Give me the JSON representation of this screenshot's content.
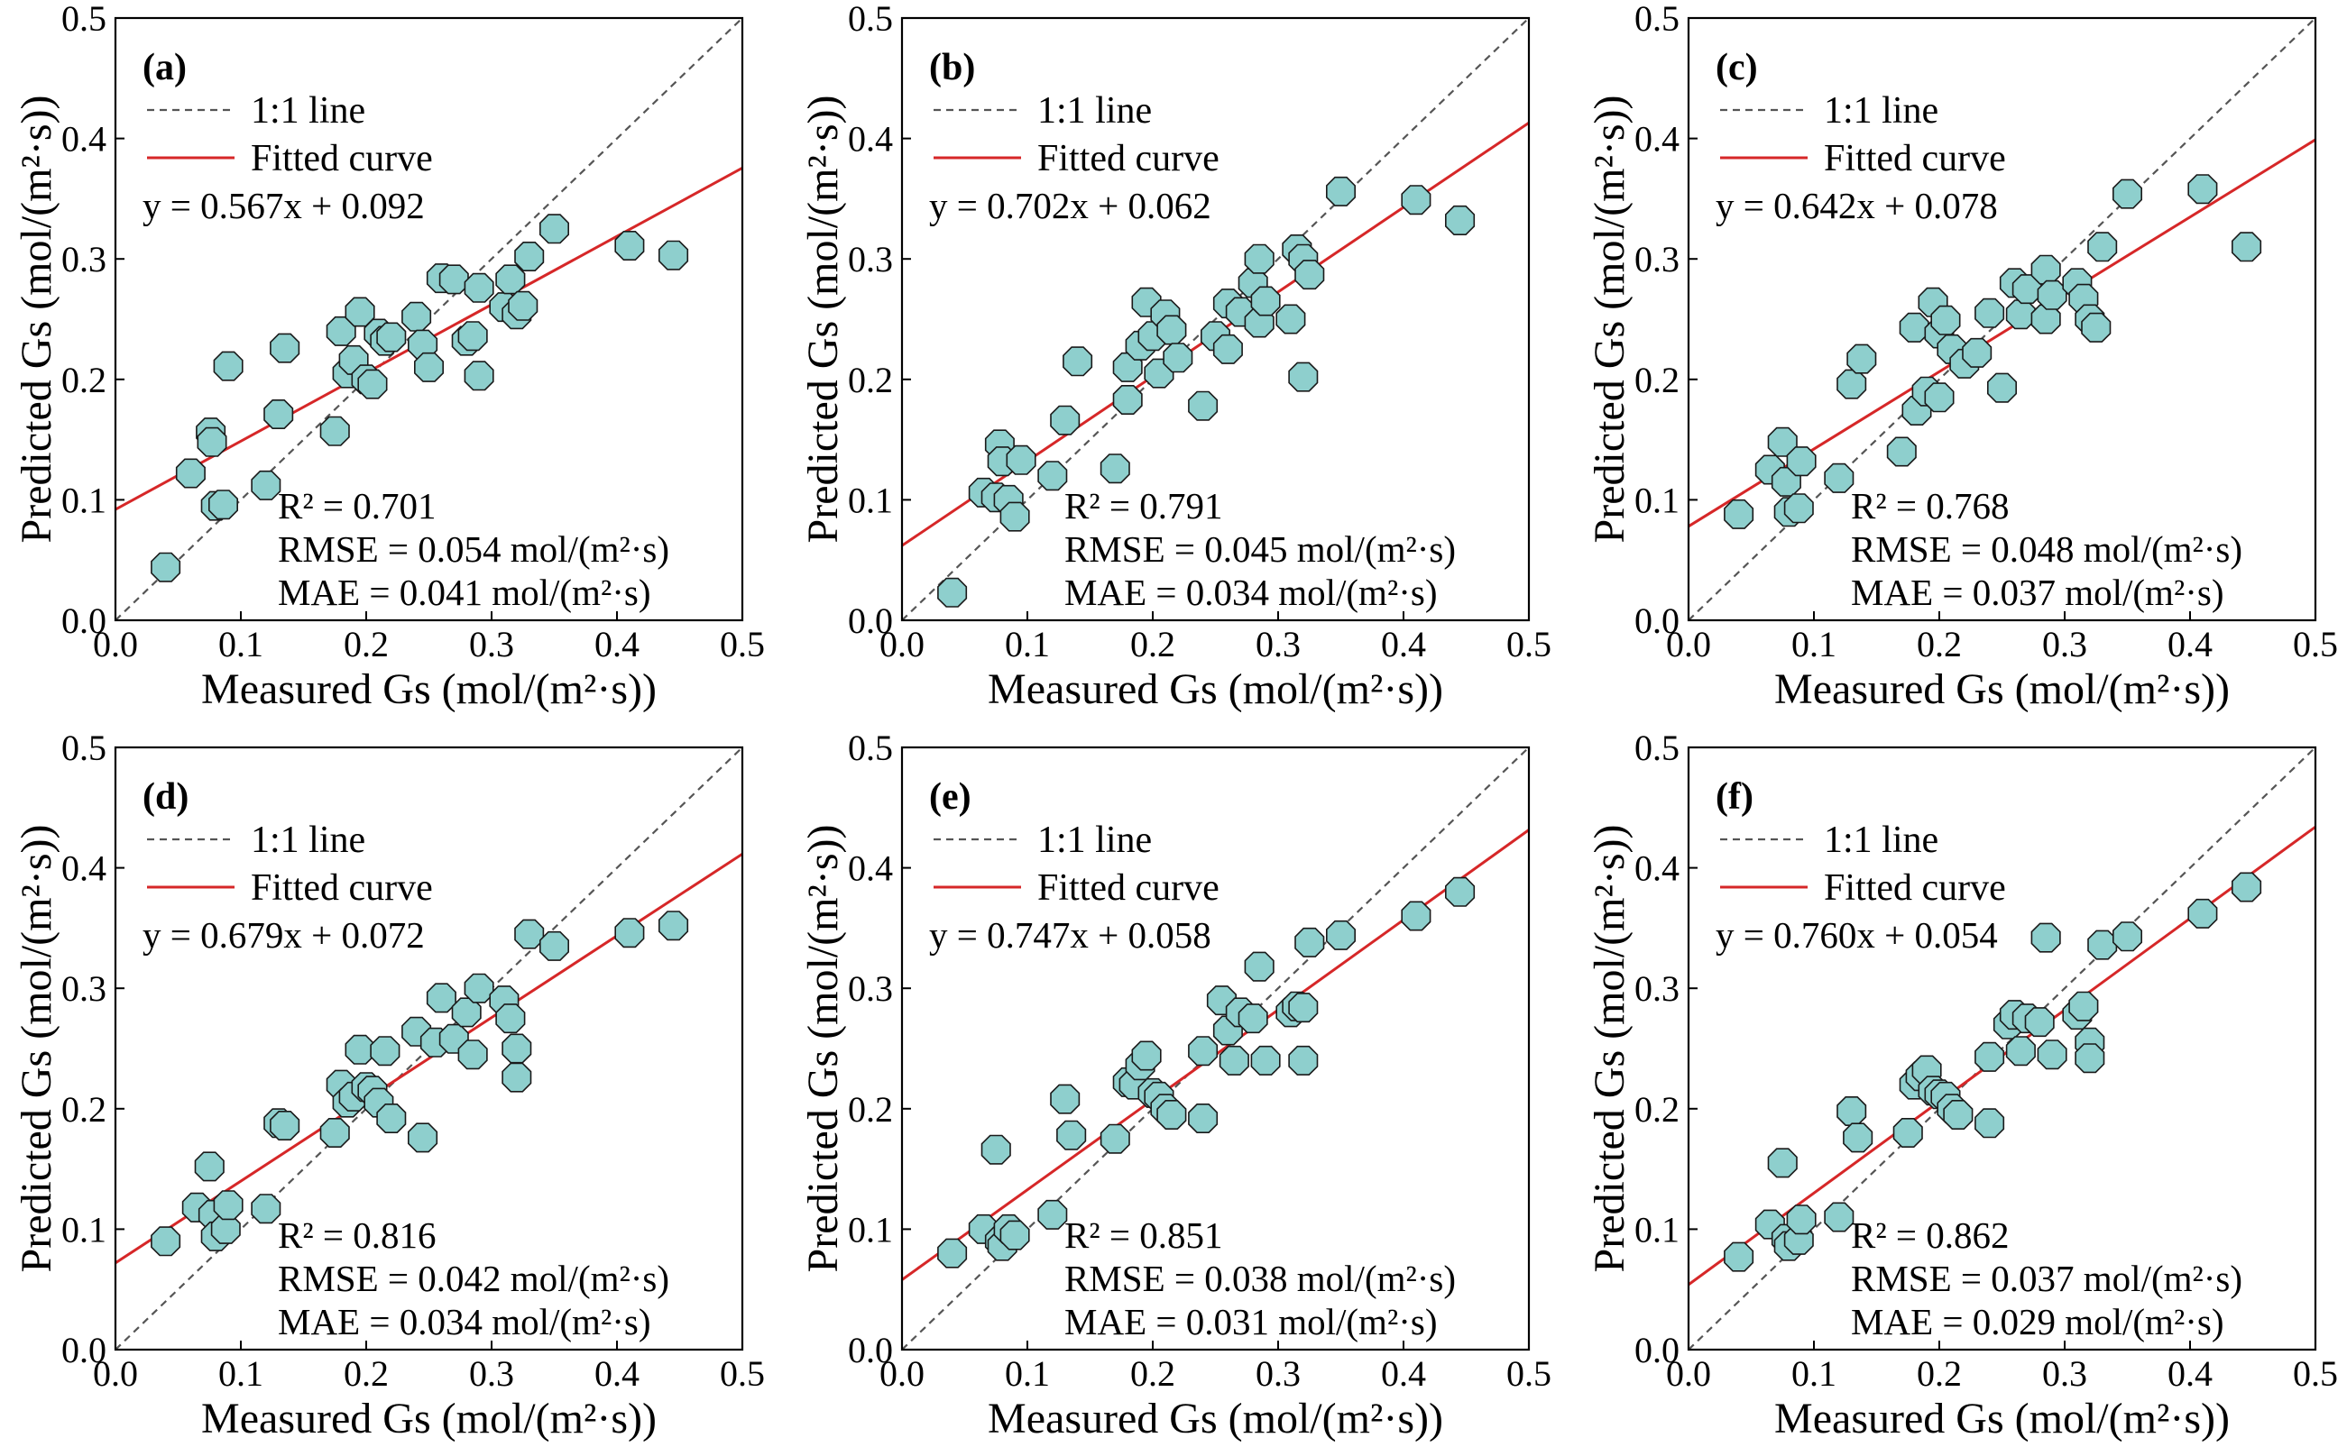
{
  "colors": {
    "one_to_one": "#555555",
    "fitted": "#d62728",
    "marker_fill": "#8ecfcd",
    "marker_edge": "#1a1a1a",
    "frame": "#000000"
  },
  "legend": {
    "one_to_one_label": "1:1 line",
    "fitted_label": "Fitted curve",
    "placement": "upper-left"
  },
  "chart_data": [
    {
      "type": "scatter",
      "panel_label": "(a)",
      "xlabel": "Measured Gs (mol/(m²·s))",
      "ylabel": "Predicted Gs (mol/(m²·s))",
      "xlim": [
        0,
        0.5
      ],
      "ylim": [
        0,
        0.5
      ],
      "xticks": [
        "0.0",
        "0.1",
        "0.2",
        "0.3",
        "0.4",
        "0.5"
      ],
      "yticks": [
        "0.0",
        "0.1",
        "0.2",
        "0.3",
        "0.4",
        "0.5"
      ],
      "fit": {
        "slope": 0.567,
        "intercept": 0.092
      },
      "equation": "y = 0.567x + 0.092",
      "r2": "R² = 0.701",
      "rmse": "RMSE = 0.054 mol/(m²·s)",
      "mae": "MAE = 0.041 mol/(m²·s)",
      "points": [
        [
          0.04,
          0.044
        ],
        [
          0.06,
          0.122
        ],
        [
          0.076,
          0.156
        ],
        [
          0.077,
          0.148
        ],
        [
          0.08,
          0.095
        ],
        [
          0.086,
          0.096
        ],
        [
          0.09,
          0.211
        ],
        [
          0.12,
          0.112
        ],
        [
          0.13,
          0.171
        ],
        [
          0.135,
          0.226
        ],
        [
          0.175,
          0.157
        ],
        [
          0.18,
          0.24
        ],
        [
          0.185,
          0.205
        ],
        [
          0.19,
          0.216
        ],
        [
          0.195,
          0.256
        ],
        [
          0.2,
          0.2
        ],
        [
          0.205,
          0.196
        ],
        [
          0.21,
          0.238
        ],
        [
          0.215,
          0.232
        ],
        [
          0.22,
          0.235
        ],
        [
          0.24,
          0.252
        ],
        [
          0.245,
          0.229
        ],
        [
          0.25,
          0.21
        ],
        [
          0.26,
          0.284
        ],
        [
          0.27,
          0.283
        ],
        [
          0.28,
          0.232
        ],
        [
          0.285,
          0.236
        ],
        [
          0.29,
          0.276
        ],
        [
          0.29,
          0.203
        ],
        [
          0.31,
          0.26
        ],
        [
          0.315,
          0.283
        ],
        [
          0.32,
          0.254
        ],
        [
          0.325,
          0.261
        ],
        [
          0.33,
          0.302
        ],
        [
          0.35,
          0.325
        ],
        [
          0.41,
          0.311
        ],
        [
          0.445,
          0.303
        ]
      ]
    },
    {
      "type": "scatter",
      "panel_label": "(b)",
      "xlabel": "Measured Gs (mol/(m²·s))",
      "ylabel": "Predicted Gs (mol/(m²·s))",
      "xlim": [
        0,
        0.5
      ],
      "ylim": [
        0,
        0.5
      ],
      "xticks": [
        "0.0",
        "0.1",
        "0.2",
        "0.3",
        "0.4",
        "0.5"
      ],
      "yticks": [
        "0.0",
        "0.1",
        "0.2",
        "0.3",
        "0.4",
        "0.5"
      ],
      "fit": {
        "slope": 0.702,
        "intercept": 0.062
      },
      "equation": "y = 0.702x + 0.062",
      "r2": "R² = 0.791",
      "rmse": "RMSE = 0.045 mol/(m²·s)",
      "mae": "MAE = 0.034 mol/(m²·s)",
      "points": [
        [
          0.04,
          0.023
        ],
        [
          0.065,
          0.106
        ],
        [
          0.075,
          0.102
        ],
        [
          0.078,
          0.146
        ],
        [
          0.08,
          0.132
        ],
        [
          0.085,
          0.1
        ],
        [
          0.09,
          0.086
        ],
        [
          0.095,
          0.133
        ],
        [
          0.12,
          0.12
        ],
        [
          0.13,
          0.166
        ],
        [
          0.14,
          0.215
        ],
        [
          0.17,
          0.126
        ],
        [
          0.18,
          0.21
        ],
        [
          0.18,
          0.183
        ],
        [
          0.19,
          0.228
        ],
        [
          0.195,
          0.264
        ],
        [
          0.2,
          0.236
        ],
        [
          0.205,
          0.205
        ],
        [
          0.21,
          0.254
        ],
        [
          0.215,
          0.241
        ],
        [
          0.22,
          0.218
        ],
        [
          0.24,
          0.178
        ],
        [
          0.25,
          0.236
        ],
        [
          0.26,
          0.225
        ],
        [
          0.26,
          0.263
        ],
        [
          0.27,
          0.256
        ],
        [
          0.28,
          0.28
        ],
        [
          0.285,
          0.247
        ],
        [
          0.285,
          0.3
        ],
        [
          0.29,
          0.265
        ],
        [
          0.31,
          0.25
        ],
        [
          0.315,
          0.308
        ],
        [
          0.32,
          0.202
        ],
        [
          0.32,
          0.3
        ],
        [
          0.325,
          0.287
        ],
        [
          0.35,
          0.356
        ],
        [
          0.41,
          0.349
        ],
        [
          0.445,
          0.332
        ]
      ]
    },
    {
      "type": "scatter",
      "panel_label": "(c)",
      "xlabel": "Measured Gs (mol/(m²·s))",
      "ylabel": "Predicted Gs (mol/(m²·s))",
      "xlim": [
        0,
        0.5
      ],
      "ylim": [
        0,
        0.5
      ],
      "xticks": [
        "0.0",
        "0.1",
        "0.2",
        "0.3",
        "0.4",
        "0.5"
      ],
      "yticks": [
        "0.0",
        "0.1",
        "0.2",
        "0.3",
        "0.4",
        "0.5"
      ],
      "fit": {
        "slope": 0.642,
        "intercept": 0.078
      },
      "equation": "y = 0.642x + 0.078",
      "r2": "R² = 0.768",
      "rmse": "RMSE = 0.048 mol/(m²·s)",
      "mae": "MAE = 0.037 mol/(m²·s)",
      "points": [
        [
          0.04,
          0.088
        ],
        [
          0.065,
          0.125
        ],
        [
          0.075,
          0.148
        ],
        [
          0.078,
          0.115
        ],
        [
          0.08,
          0.09
        ],
        [
          0.088,
          0.093
        ],
        [
          0.09,
          0.132
        ],
        [
          0.12,
          0.118
        ],
        [
          0.13,
          0.196
        ],
        [
          0.138,
          0.217
        ],
        [
          0.17,
          0.14
        ],
        [
          0.18,
          0.243
        ],
        [
          0.182,
          0.174
        ],
        [
          0.19,
          0.19
        ],
        [
          0.195,
          0.264
        ],
        [
          0.2,
          0.185
        ],
        [
          0.2,
          0.238
        ],
        [
          0.205,
          0.249
        ],
        [
          0.21,
          0.225
        ],
        [
          0.22,
          0.213
        ],
        [
          0.23,
          0.222
        ],
        [
          0.24,
          0.255
        ],
        [
          0.25,
          0.193
        ],
        [
          0.26,
          0.28
        ],
        [
          0.265,
          0.254
        ],
        [
          0.27,
          0.275
        ],
        [
          0.285,
          0.291
        ],
        [
          0.285,
          0.25
        ],
        [
          0.29,
          0.27
        ],
        [
          0.31,
          0.28
        ],
        [
          0.315,
          0.267
        ],
        [
          0.32,
          0.25
        ],
        [
          0.325,
          0.243
        ],
        [
          0.33,
          0.31
        ],
        [
          0.35,
          0.354
        ],
        [
          0.41,
          0.358
        ],
        [
          0.445,
          0.31
        ]
      ]
    },
    {
      "type": "scatter",
      "panel_label": "(d)",
      "xlabel": "Measured Gs (mol/(m²·s))",
      "ylabel": "Predicted Gs (mol/(m²·s))",
      "xlim": [
        0,
        0.5
      ],
      "ylim": [
        0,
        0.5
      ],
      "xticks": [
        "0.0",
        "0.1",
        "0.2",
        "0.3",
        "0.4",
        "0.5"
      ],
      "yticks": [
        "0.0",
        "0.1",
        "0.2",
        "0.3",
        "0.4",
        "0.5"
      ],
      "fit": {
        "slope": 0.679,
        "intercept": 0.072
      },
      "equation": "y = 0.679x + 0.072",
      "r2": "R² = 0.816",
      "rmse": "RMSE = 0.042 mol/(m²·s)",
      "mae": "MAE = 0.034 mol/(m²·s)",
      "points": [
        [
          0.04,
          0.09
        ],
        [
          0.065,
          0.118
        ],
        [
          0.075,
          0.152
        ],
        [
          0.078,
          0.112
        ],
        [
          0.08,
          0.094
        ],
        [
          0.088,
          0.1
        ],
        [
          0.09,
          0.12
        ],
        [
          0.12,
          0.117
        ],
        [
          0.13,
          0.188
        ],
        [
          0.135,
          0.186
        ],
        [
          0.175,
          0.18
        ],
        [
          0.18,
          0.22
        ],
        [
          0.185,
          0.205
        ],
        [
          0.19,
          0.21
        ],
        [
          0.195,
          0.249
        ],
        [
          0.2,
          0.218
        ],
        [
          0.205,
          0.215
        ],
        [
          0.21,
          0.205
        ],
        [
          0.215,
          0.248
        ],
        [
          0.22,
          0.192
        ],
        [
          0.24,
          0.264
        ],
        [
          0.245,
          0.176
        ],
        [
          0.255,
          0.255
        ],
        [
          0.26,
          0.292
        ],
        [
          0.27,
          0.258
        ],
        [
          0.28,
          0.28
        ],
        [
          0.285,
          0.245
        ],
        [
          0.29,
          0.3
        ],
        [
          0.31,
          0.29
        ],
        [
          0.315,
          0.275
        ],
        [
          0.32,
          0.25
        ],
        [
          0.32,
          0.226
        ],
        [
          0.33,
          0.345
        ],
        [
          0.35,
          0.335
        ],
        [
          0.41,
          0.346
        ],
        [
          0.445,
          0.352
        ]
      ]
    },
    {
      "type": "scatter",
      "panel_label": "(e)",
      "xlabel": "Measured Gs (mol/(m²·s))",
      "ylabel": "Predicted Gs (mol/(m²·s))",
      "xlim": [
        0,
        0.5
      ],
      "ylim": [
        0,
        0.5
      ],
      "xticks": [
        "0.0",
        "0.1",
        "0.2",
        "0.3",
        "0.4",
        "0.5"
      ],
      "yticks": [
        "0.0",
        "0.1",
        "0.2",
        "0.3",
        "0.4",
        "0.5"
      ],
      "fit": {
        "slope": 0.747,
        "intercept": 0.058
      },
      "equation": "y = 0.747x + 0.058",
      "r2": "R² = 0.851",
      "rmse": "RMSE = 0.038 mol/(m²·s)",
      "mae": "MAE = 0.031 mol/(m²·s)",
      "points": [
        [
          0.04,
          0.08
        ],
        [
          0.065,
          0.1
        ],
        [
          0.075,
          0.166
        ],
        [
          0.078,
          0.09
        ],
        [
          0.08,
          0.086
        ],
        [
          0.085,
          0.1
        ],
        [
          0.09,
          0.095
        ],
        [
          0.12,
          0.112
        ],
        [
          0.13,
          0.208
        ],
        [
          0.135,
          0.178
        ],
        [
          0.17,
          0.175
        ],
        [
          0.18,
          0.222
        ],
        [
          0.185,
          0.22
        ],
        [
          0.19,
          0.236
        ],
        [
          0.195,
          0.244
        ],
        [
          0.2,
          0.213
        ],
        [
          0.205,
          0.21
        ],
        [
          0.21,
          0.2
        ],
        [
          0.215,
          0.195
        ],
        [
          0.24,
          0.248
        ],
        [
          0.24,
          0.192
        ],
        [
          0.255,
          0.29
        ],
        [
          0.26,
          0.265
        ],
        [
          0.265,
          0.24
        ],
        [
          0.27,
          0.28
        ],
        [
          0.28,
          0.275
        ],
        [
          0.285,
          0.318
        ],
        [
          0.29,
          0.24
        ],
        [
          0.31,
          0.28
        ],
        [
          0.315,
          0.285
        ],
        [
          0.32,
          0.284
        ],
        [
          0.32,
          0.24
        ],
        [
          0.325,
          0.338
        ],
        [
          0.35,
          0.344
        ],
        [
          0.41,
          0.36
        ],
        [
          0.445,
          0.38
        ]
      ]
    },
    {
      "type": "scatter",
      "panel_label": "(f)",
      "xlabel": "Measured Gs (mol/(m²·s))",
      "ylabel": "Predicted Gs (mol/(m²·s))",
      "xlim": [
        0,
        0.5
      ],
      "ylim": [
        0,
        0.5
      ],
      "xticks": [
        "0.0",
        "0.1",
        "0.2",
        "0.3",
        "0.4",
        "0.5"
      ],
      "yticks": [
        "0.0",
        "0.1",
        "0.2",
        "0.3",
        "0.4",
        "0.5"
      ],
      "fit": {
        "slope": 0.76,
        "intercept": 0.054
      },
      "equation": "y = 0.760x + 0.054",
      "r2": "R² = 0.862",
      "rmse": "RMSE = 0.037 mol/(m²·s)",
      "mae": "MAE = 0.029 mol/(m²·s)",
      "points": [
        [
          0.04,
          0.077
        ],
        [
          0.065,
          0.104
        ],
        [
          0.075,
          0.155
        ],
        [
          0.078,
          0.092
        ],
        [
          0.08,
          0.086
        ],
        [
          0.088,
          0.091
        ],
        [
          0.09,
          0.108
        ],
        [
          0.12,
          0.11
        ],
        [
          0.13,
          0.198
        ],
        [
          0.135,
          0.176
        ],
        [
          0.175,
          0.18
        ],
        [
          0.18,
          0.22
        ],
        [
          0.185,
          0.227
        ],
        [
          0.19,
          0.232
        ],
        [
          0.195,
          0.215
        ],
        [
          0.2,
          0.212
        ],
        [
          0.205,
          0.21
        ],
        [
          0.21,
          0.2
        ],
        [
          0.215,
          0.195
        ],
        [
          0.24,
          0.243
        ],
        [
          0.24,
          0.188
        ],
        [
          0.255,
          0.27
        ],
        [
          0.26,
          0.278
        ],
        [
          0.265,
          0.248
        ],
        [
          0.27,
          0.275
        ],
        [
          0.28,
          0.272
        ],
        [
          0.285,
          0.342
        ],
        [
          0.29,
          0.245
        ],
        [
          0.31,
          0.278
        ],
        [
          0.315,
          0.285
        ],
        [
          0.32,
          0.255
        ],
        [
          0.32,
          0.242
        ],
        [
          0.33,
          0.336
        ],
        [
          0.35,
          0.343
        ],
        [
          0.41,
          0.362
        ],
        [
          0.445,
          0.384
        ]
      ]
    }
  ]
}
